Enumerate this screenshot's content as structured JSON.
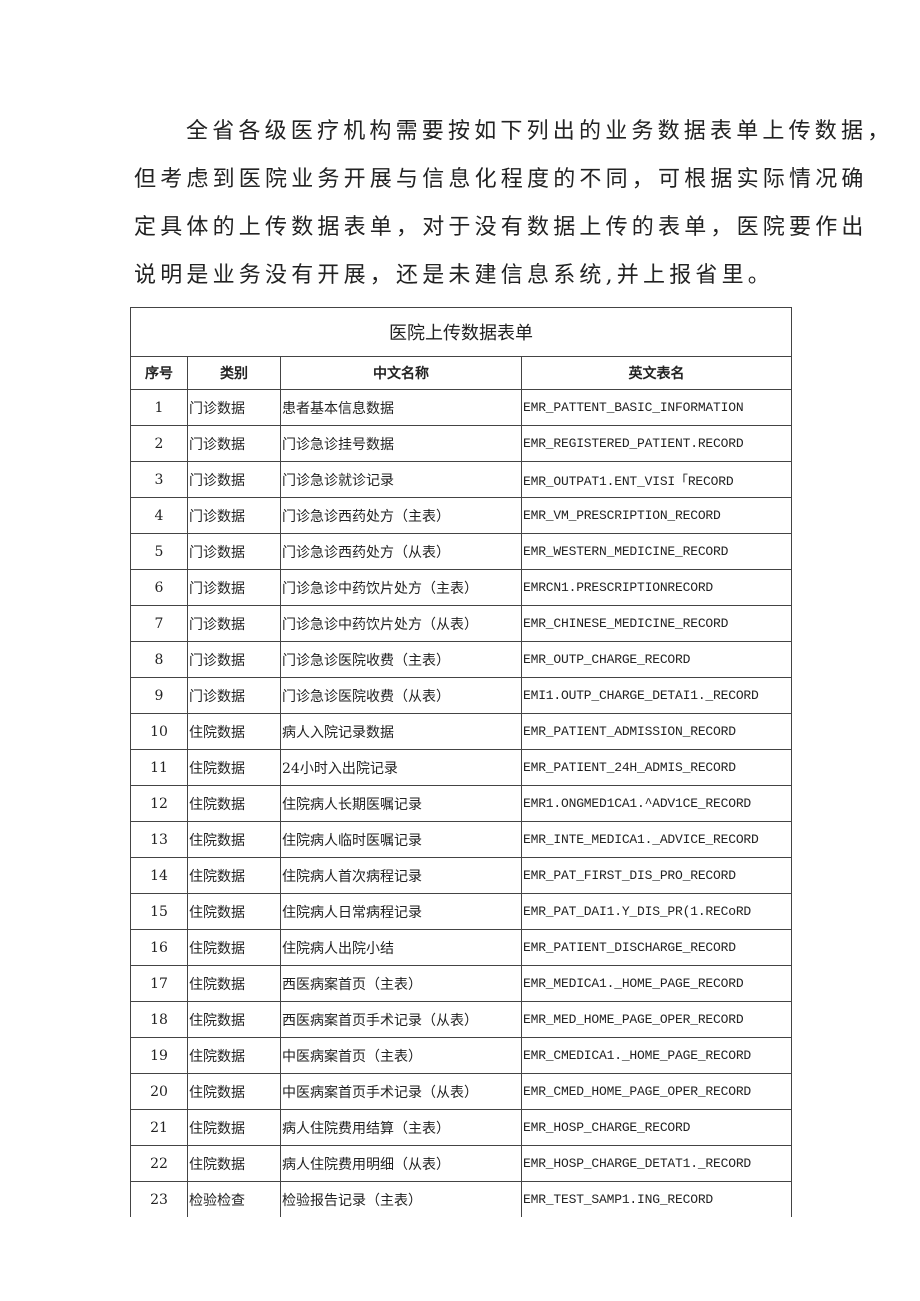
{
  "paragraph": {
    "lines": [
      "全省各级医疗机构需要按如下列出的业务数据表单上传数据，",
      "但考虑到医院业务开展与信息化程度的不同，可根据实际情况确",
      "定具体的上传数据表单，对于没有数据上传的表单，医院要作出",
      "说明是业务没有开展，还是未建信息系统,并上报省里。"
    ]
  },
  "table": {
    "title": "医院上传数据表单",
    "headers": [
      "序号",
      "类别",
      "中文名称",
      "英文表名"
    ],
    "rows": [
      [
        "1",
        "门诊数据",
        "患者基本信息数据",
        "EMR_PATTENT_BASIC_INFORMATION"
      ],
      [
        "2",
        "门诊数据",
        "门诊急诊挂号数据",
        "EMR_REGISTERED_PATIENT.RECORD"
      ],
      [
        "3",
        "门诊数据",
        "门诊急诊就诊记录",
        "EMR_OUTPAT1.ENT_VISI「RECORD"
      ],
      [
        "4",
        "门诊数据",
        "门诊急诊西药处方（主表）",
        "EMR_VM_PRESCRIPTION_RECORD"
      ],
      [
        "5",
        "门诊数据",
        "门诊急诊西药处方（从表）",
        "EMR_WESTERN_MEDICINE_RECORD"
      ],
      [
        "6",
        "门诊数据",
        "门诊急诊中药饮片处方（主表）",
        "EMRCN1.PRESCRIPTIONRECORD"
      ],
      [
        "7",
        "门诊数据",
        "门诊急诊中药饮片处方（从表）",
        "EMR_CHINESE_MEDICINE_RECORD"
      ],
      [
        "8",
        "门诊数据",
        "门诊急诊医院收费（主表）",
        "EMR_OUTP_CHARGE_RECORD"
      ],
      [
        "9",
        "门诊数据",
        "门诊急诊医院收费（从表）",
        "EMI1.OUTP_CHARGE_DETAI1._RECORD"
      ],
      [
        "10",
        "住院数据",
        "病人入院记录数据",
        "EMR_PATIENT_ADMISSION_RECORD"
      ],
      [
        "11",
        "住院数据",
        "24小时入出院记录",
        "EMR_PATIENT_24H_ADMIS_RECORD"
      ],
      [
        "12",
        "住院数据",
        "住院病人长期医嘱记录",
        "EMR1.ONGMED1CA1.^ADV1CE_RECORD"
      ],
      [
        "13",
        "住院数据",
        "住院病人临时医嘱记录",
        "EMR_INTE_MEDICA1._ADVICE_RECORD"
      ],
      [
        "14",
        "住院数据",
        "住院病人首次病程记录",
        "EMR_PAT_FIRST_DIS_PRO_RECORD"
      ],
      [
        "15",
        "住院数据",
        "住院病人日常病程记录",
        "EMR_PAT_DAI1.Y_DIS_PR(1.RECoRD"
      ],
      [
        "16",
        "住院数据",
        "住院病人出院小结",
        "EMR_PATIENT_DISCHARGE_RECORD"
      ],
      [
        "17",
        "住院数据",
        "西医病案首页（主表）",
        "EMR_MEDICA1._HOME_PAGE_RECORD"
      ],
      [
        "18",
        "住院数据",
        "西医病案首页手术记录（从表）",
        "EMR_MED_HOME_PAGE_OPER_RECORD"
      ],
      [
        "19",
        "住院数据",
        "中医病案首页（主表）",
        "EMR_CMEDICA1._HOME_PAGE_RECORD"
      ],
      [
        "20",
        "住院数据",
        "中医病案首页手术记录（从表）",
        "EMR_CMED_HOME_PAGE_OPER_RECORD"
      ],
      [
        "21",
        "住院数据",
        "病人住院费用结算（主表）",
        "EMR_HOSP_CHARGE_RECORD"
      ],
      [
        "22",
        "住院数据",
        "病人住院费用明细（从表）",
        "EMR_HOSP_CHARGE_DETAT1._RECORD"
      ],
      [
        "23",
        "检验检查",
        "检验报告记录（主表）",
        "EMR_TEST_SAMP1.ING_RECORD"
      ]
    ]
  }
}
